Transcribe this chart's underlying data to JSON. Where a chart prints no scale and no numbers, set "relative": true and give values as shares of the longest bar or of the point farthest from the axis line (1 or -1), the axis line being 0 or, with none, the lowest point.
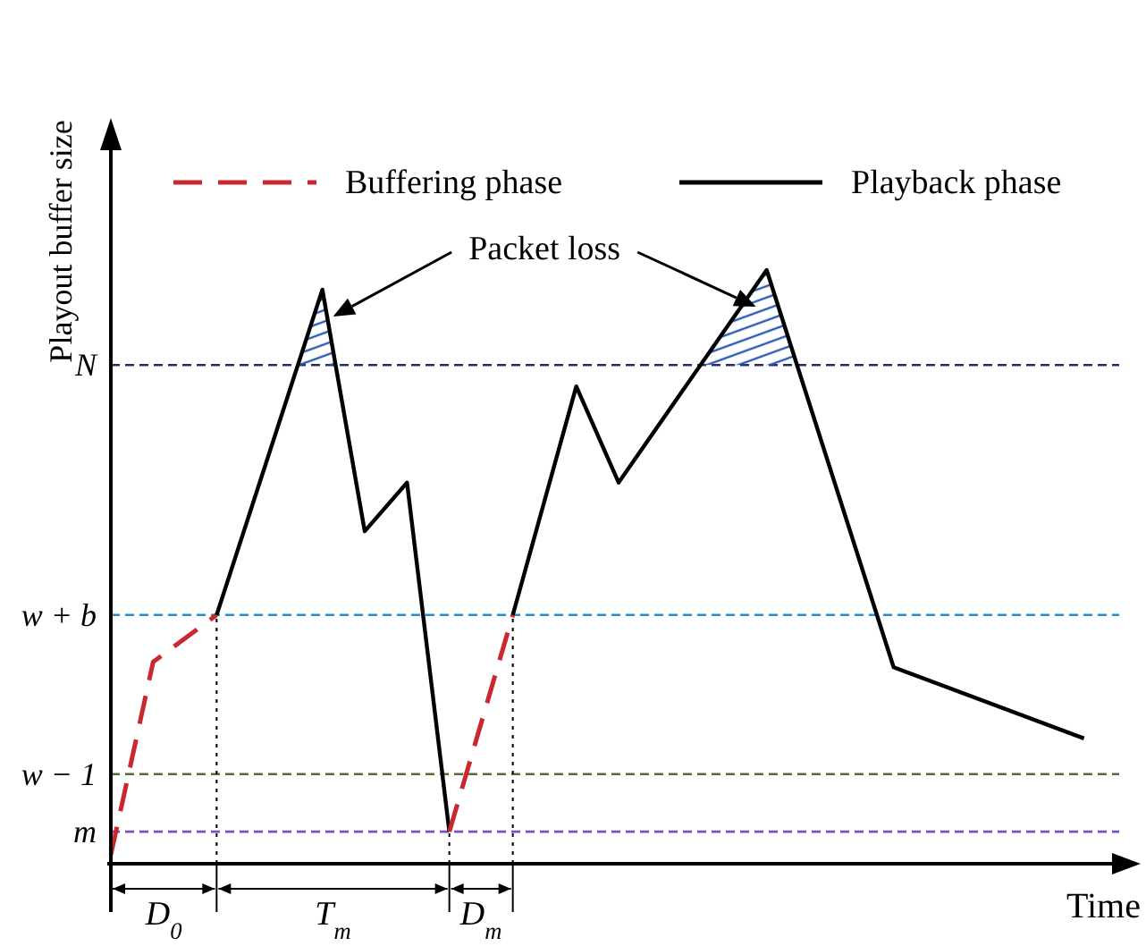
{
  "chart_data": {
    "type": "line",
    "relative": true,
    "ylabel": "Playout buffer size",
    "xlabel": "Time",
    "legend": "top",
    "marker": "none",
    "categories": [
      null,
      null,
      null,
      null,
      null,
      null,
      null,
      null,
      null,
      null,
      null,
      null,
      null,
      null,
      null,
      null,
      null,
      null,
      null,
      null,
      null,
      null,
      null,
      null,
      null,
      null,
      null,
      null,
      null,
      null,
      null,
      null,
      null,
      null,
      null,
      null,
      null,
      null,
      null,
      null,
      null,
      null,
      null,
      null,
      null,
      null,
      null,
      null,
      null
    ],
    "series": [
      {
        "name": "Buffering phase",
        "color": "#c8282e",
        "line_style": "dashed",
        "values": [
          0.015,
          null,
          0.34,
          null,
          null,
          0.419,
          null,
          null,
          null,
          null,
          null,
          null,
          null,
          null,
          null,
          null,
          null,
          null,
          null,
          null,
          null,
          null,
          null,
          null,
          null,
          null,
          null,
          null,
          null,
          null,
          null,
          null,
          null,
          null,
          null,
          null,
          null,
          null,
          null,
          null,
          null,
          null,
          null,
          null,
          null,
          null,
          null,
          null,
          null
        ]
      },
      {
        "name": "Playback phase",
        "color": "#000000",
        "line_style": "solid",
        "values": [
          null,
          null,
          null,
          null,
          null,
          0.419,
          null,
          null,
          null,
          null,
          0.967,
          null,
          0.56,
          null,
          0.642,
          null,
          0.054,
          null,
          null,
          null,
          null,
          null,
          null,
          null,
          null,
          null,
          null,
          null,
          null,
          null,
          null,
          null,
          null,
          null,
          null,
          null,
          null,
          null,
          null,
          null,
          null,
          null,
          null,
          null,
          null,
          null,
          null,
          null,
          null
        ]
      },
      {
        "color": "#c8282e",
        "line_style": "dashed",
        "values": [
          null,
          null,
          null,
          null,
          null,
          null,
          null,
          null,
          null,
          null,
          null,
          null,
          null,
          null,
          null,
          null,
          0.054,
          null,
          null,
          0.419,
          null,
          null,
          null,
          null,
          null,
          null,
          null,
          null,
          null,
          null,
          null,
          null,
          null,
          null,
          null,
          null,
          null,
          null,
          null,
          null,
          null,
          null,
          null,
          null,
          null,
          null,
          null,
          null,
          null
        ]
      },
      {
        "color": "#000000",
        "line_style": "solid",
        "values": [
          null,
          null,
          null,
          null,
          null,
          null,
          null,
          null,
          null,
          null,
          null,
          null,
          null,
          null,
          null,
          null,
          null,
          null,
          null,
          0.419,
          null,
          null,
          0.804,
          null,
          0.642,
          null,
          null,
          null,
          null,
          null,
          null,
          1.0,
          null,
          null,
          null,
          null,
          null,
          0.331,
          null,
          null,
          null,
          null,
          null,
          null,
          null,
          null,
          0.211,
          null,
          null
        ]
      }
    ],
    "ref_lines": [
      {
        "axis": "y",
        "value": 0.84,
        "label": "N",
        "color": "#2b2b6b",
        "line_style": "dashed"
      },
      {
        "axis": "y",
        "value": 0.419,
        "label": "w + b",
        "color": "#1f8fd0",
        "line_style": "dashed"
      },
      {
        "axis": "y",
        "value": 0.151,
        "label": "w − 1",
        "color": "#5a6b3a",
        "line_style": "dashed"
      },
      {
        "axis": "y",
        "value": 0.054,
        "label": "m",
        "color": "#7a4fc0",
        "line_style": "dashed"
      }
    ],
    "annotations": [
      "Packet loss",
      "D$_{0}$",
      "T$_{m}$",
      "D$_{m}$"
    ]
  }
}
